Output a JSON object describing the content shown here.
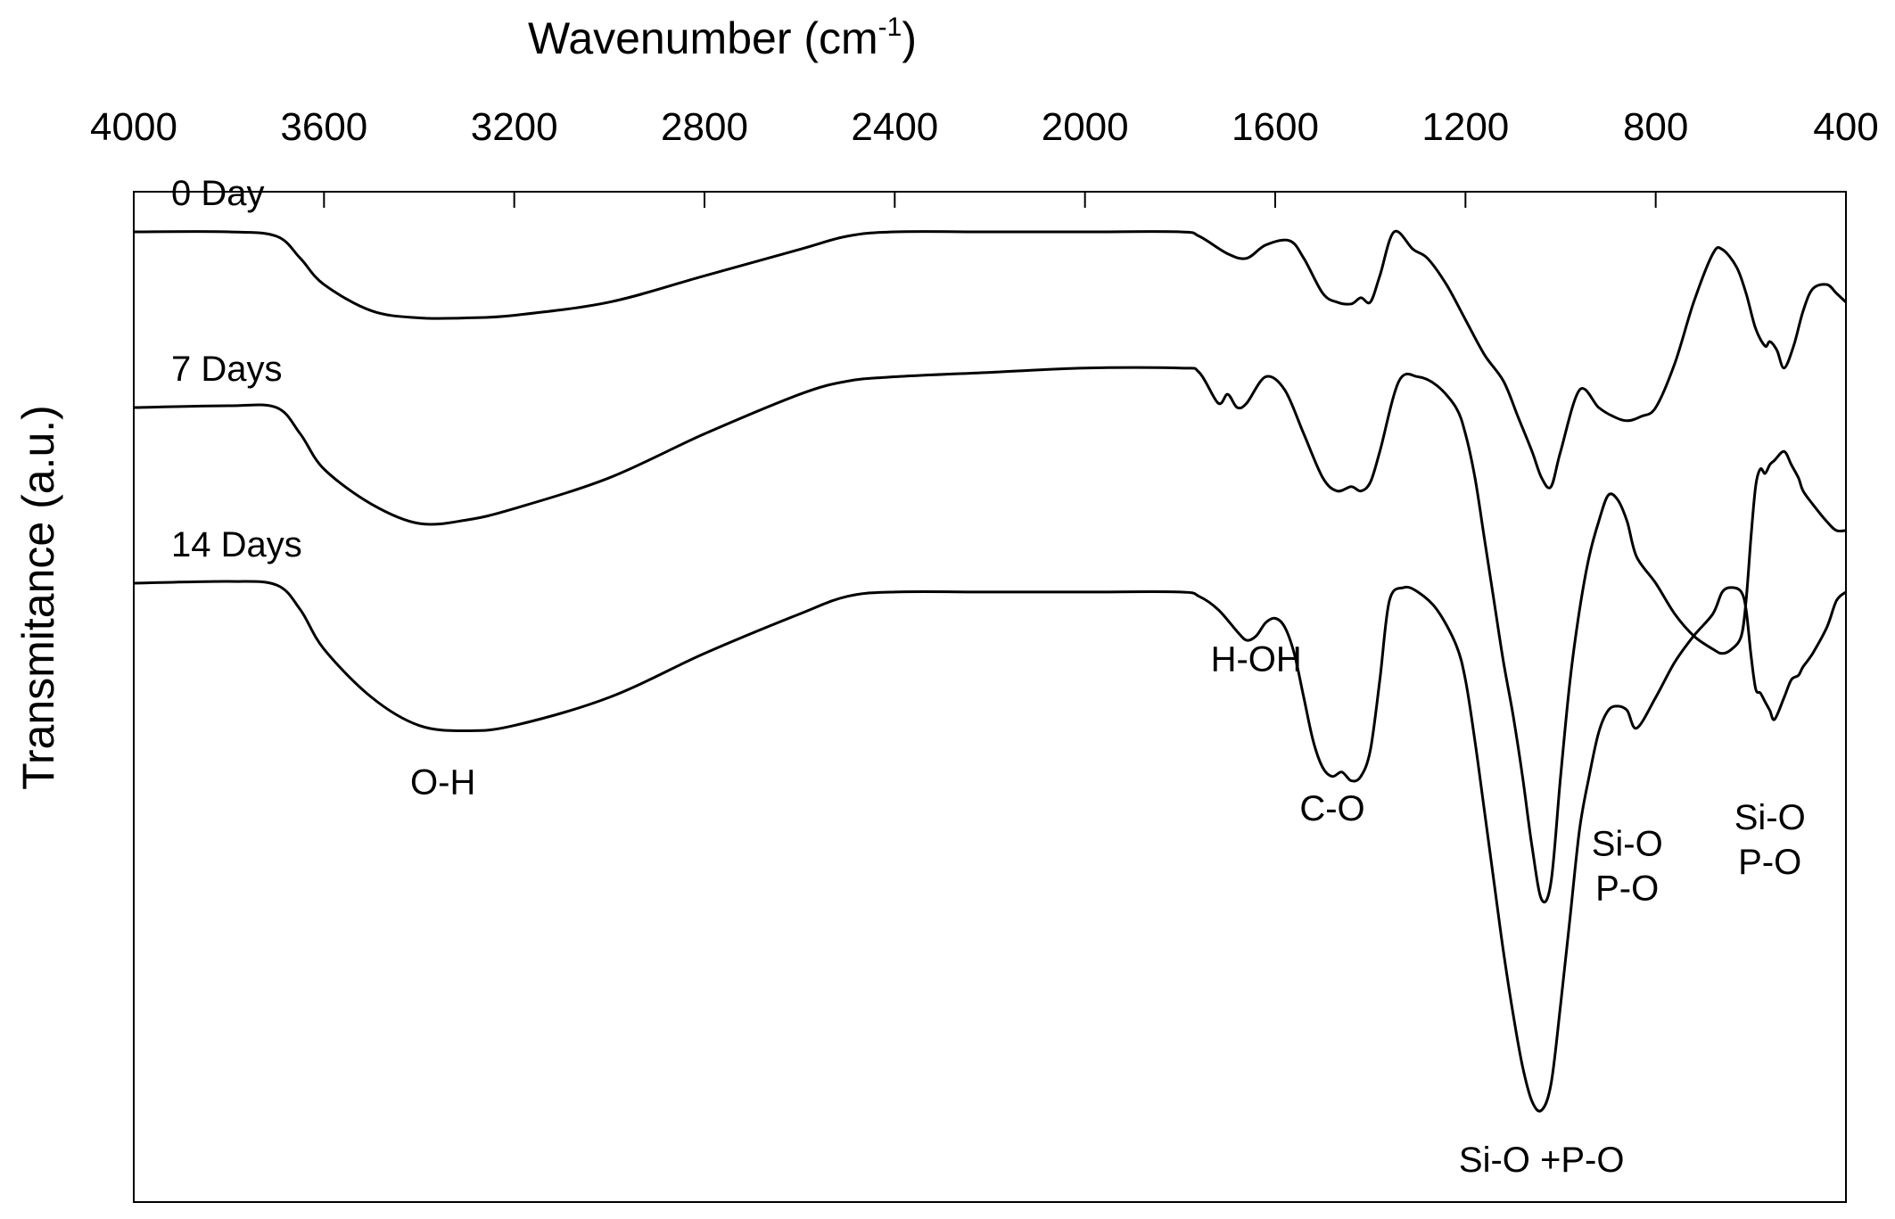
{
  "chart_data": {
    "type": "line",
    "title": "",
    "xlabel": "Wavenumber (cm",
    "xlabel_sup": "-1",
    "xlabel_end": ")",
    "ylabel": "Transmitance (a.u.)",
    "xlim": [
      4000,
      400
    ],
    "x_reversed": true,
    "x_ticks": [
      "4000",
      "3600",
      "3200",
      "2800",
      "2400",
      "2000",
      "1600",
      "1200",
      "800",
      "400"
    ],
    "grid": false,
    "line_color": "#000000",
    "series": [
      {
        "name": "0 Day",
        "x": [
          4000,
          3800,
          3700,
          3650,
          3600,
          3500,
          3400,
          3300,
          3200,
          3000,
          2800,
          2600,
          2500,
          2400,
          2200,
          2000,
          1800,
          1760,
          1700,
          1660,
          1620,
          1570,
          1540,
          1500,
          1470,
          1440,
          1420,
          1400,
          1380,
          1350,
          1310,
          1280,
          1240,
          1200,
          1160,
          1120,
          1090,
          1060,
          1040,
          1020,
          1000,
          960,
          920,
          890,
          860,
          830,
          800,
          760,
          720,
          680,
          660,
          630,
          610,
          590,
          570,
          560,
          545,
          530,
          510,
          490,
          470,
          440,
          420,
          400
        ],
        "y": [
          100,
          100,
          99.5,
          97,
          94,
          91,
          90.2,
          90.2,
          90.5,
          92,
          95,
          98,
          99.5,
          100,
          100,
          100,
          100,
          99.5,
          97.5,
          97,
          98.5,
          99,
          97,
          93,
          92,
          91.8,
          92.5,
          92,
          95,
          100,
          98,
          97,
          94,
          90,
          86,
          83,
          79,
          75,
          72,
          71,
          75,
          82,
          80,
          79,
          78.5,
          79,
          80,
          85,
          92,
          97.5,
          98,
          96,
          93,
          89,
          87,
          87.5,
          86.5,
          84.5,
          87,
          91,
          93.5,
          94,
          93,
          92
        ]
      },
      {
        "name": "7 Days",
        "x": [
          4000,
          3800,
          3700,
          3650,
          3600,
          3500,
          3400,
          3300,
          3200,
          3000,
          2800,
          2600,
          2500,
          2400,
          2200,
          2000,
          1800,
          1760,
          1720,
          1700,
          1680,
          1660,
          1620,
          1580,
          1540,
          1500,
          1470,
          1440,
          1420,
          1400,
          1380,
          1340,
          1300,
          1260,
          1220,
          1200,
          1180,
          1160,
          1140,
          1120,
          1100,
          1080,
          1060,
          1040,
          1020,
          1000,
          980,
          960,
          940,
          920,
          900,
          880,
          860,
          840,
          800,
          760,
          720,
          680,
          660,
          640,
          620,
          610,
          600,
          590,
          580,
          570,
          560,
          550,
          530,
          515,
          500,
          490,
          470,
          440,
          420,
          400
        ],
        "y": [
          80,
          80.2,
          80,
          77,
          73,
          69,
          66.8,
          67.2,
          68.5,
          72,
          77,
          81.5,
          83,
          83.5,
          84,
          84.5,
          84.5,
          84,
          80.5,
          81.5,
          80,
          80.5,
          83.5,
          82,
          77,
          72,
          70.5,
          71,
          70.5,
          71.5,
          75,
          83,
          83.5,
          82.5,
          80,
          77,
          72,
          65,
          58,
          51,
          45,
          38,
          30,
          24,
          26,
          38,
          49,
          57,
          63,
          67,
          70,
          69.5,
          67,
          63,
          60,
          56.5,
          54,
          52.5,
          52,
          52.5,
          54,
          58,
          65,
          71,
          73,
          72.5,
          73.5,
          74,
          75,
          73.5,
          72,
          70.5,
          69,
          67,
          66,
          66
        ]
      },
      {
        "name": "14 Days",
        "x": [
          4000,
          3800,
          3700,
          3650,
          3600,
          3500,
          3400,
          3300,
          3200,
          3000,
          2800,
          2600,
          2500,
          2400,
          2200,
          2000,
          1800,
          1760,
          1720,
          1680,
          1660,
          1640,
          1620,
          1600,
          1580,
          1560,
          1540,
          1520,
          1500,
          1480,
          1460,
          1440,
          1420,
          1400,
          1380,
          1360,
          1330,
          1300,
          1260,
          1220,
          1200,
          1180,
          1160,
          1140,
          1120,
          1100,
          1080,
          1060,
          1040,
          1020,
          1000,
          980,
          960,
          940,
          920,
          900,
          880,
          860,
          840,
          800,
          760,
          720,
          680,
          660,
          640,
          620,
          610,
          600,
          590,
          580,
          570,
          560,
          550,
          530,
          515,
          500,
          490,
          470,
          440,
          420,
          400
        ],
        "y": [
          60,
          60.2,
          59.8,
          57,
          52.5,
          47,
          43.8,
          43.2,
          43.8,
          47,
          52,
          56.5,
          58.5,
          59,
          59,
          59,
          59,
          58.5,
          57,
          54.5,
          53.5,
          54,
          55.5,
          56,
          55,
          52,
          47,
          42,
          39,
          38,
          38.5,
          37.5,
          38,
          41,
          49,
          58,
          59.5,
          59,
          57,
          53,
          49,
          42,
          34,
          26,
          18,
          11,
          5,
          1,
          0,
          3,
          12,
          22,
          32,
          38,
          43,
          45.5,
          46,
          45.5,
          43.5,
          47,
          51,
          54,
          56.5,
          59,
          59.5,
          59,
          57,
          52,
          48,
          47.5,
          46.5,
          45.5,
          44.5,
          47,
          49,
          49.5,
          50.5,
          52,
          55,
          58,
          59
        ]
      }
    ],
    "series_labels": [
      {
        "text": "0 Day",
        "series": 0
      },
      {
        "text": "7 Days",
        "series": 1
      },
      {
        "text": "14 Days",
        "series": 2
      }
    ],
    "annotations": [
      {
        "lines": [
          "O-H"
        ],
        "x": 3350,
        "y": 36
      },
      {
        "lines": [
          "H-OH"
        ],
        "x": 1640,
        "y": 50
      },
      {
        "lines": [
          "C-O"
        ],
        "x": 1480,
        "y": 33
      },
      {
        "lines": [
          "Si-O +P-O"
        ],
        "x": 1040,
        "y": -7
      },
      {
        "lines": [
          "Si-O",
          "P-O"
        ],
        "x": 860,
        "y": 29
      },
      {
        "lines": [
          "Si-O",
          "P-O"
        ],
        "x": 560,
        "y": 32
      }
    ]
  }
}
